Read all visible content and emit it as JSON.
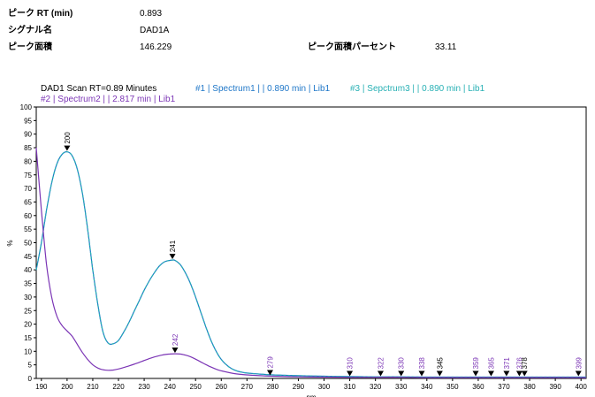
{
  "header": {
    "peak_rt_label": "ピーク RT (min)",
    "peak_rt_value": "0.893",
    "signal_label": "シグナル名",
    "signal_value": "DAD1A",
    "area_label": "ピーク面積",
    "area_value": "146.229",
    "area_pct_label": "ピーク面積パーセント",
    "area_pct_value": "33.11"
  },
  "chart_data": {
    "type": "line",
    "title": "DAD1 Scan RT=0.89 Minutes",
    "xlabel": "nm",
    "ylabel": "%",
    "xlim": [
      188,
      402
    ],
    "ylim": [
      0,
      100
    ],
    "xticks": [
      190,
      200,
      210,
      220,
      230,
      240,
      250,
      260,
      270,
      280,
      290,
      300,
      310,
      320,
      330,
      340,
      350,
      360,
      370,
      380,
      390,
      400
    ],
    "yticks": [
      0,
      5,
      10,
      15,
      20,
      25,
      30,
      35,
      40,
      45,
      50,
      55,
      60,
      65,
      70,
      75,
      80,
      85,
      90,
      95,
      100
    ],
    "grid": false,
    "legend_position": "top",
    "series": [
      {
        "name": "#1 | Spectrum1 |  | 0.890 min | Lib1",
        "color": "#1f77c8",
        "x": [
          188,
          190,
          192,
          194,
          196,
          198,
          200,
          202,
          204,
          206,
          208,
          210,
          212,
          214,
          216,
          218,
          220,
          222,
          224,
          226,
          228,
          230,
          232,
          234,
          236,
          238,
          240,
          241,
          242,
          244,
          246,
          248,
          250,
          252,
          254,
          256,
          258,
          260,
          262,
          264,
          266,
          268,
          270,
          275,
          280,
          290,
          300,
          310,
          320,
          330,
          340,
          350,
          360,
          370,
          380,
          390,
          400,
          402
        ],
        "y": [
          40,
          50,
          62,
          72,
          79,
          82.5,
          83.5,
          82,
          77,
          68,
          55,
          40,
          27,
          17,
          13,
          12.8,
          14,
          17,
          20.5,
          24.5,
          28.5,
          32.5,
          36,
          39,
          41.5,
          43,
          43.5,
          43.6,
          43.5,
          42,
          39,
          35,
          30,
          24.5,
          19,
          14,
          10,
          7,
          5,
          3.6,
          2.8,
          2.3,
          2,
          1.6,
          1.3,
          1,
          0.8,
          0.7,
          0.6,
          0.6,
          0.5,
          0.5,
          0.5,
          0.5,
          0.5,
          0.5,
          0.5,
          0.5
        ]
      },
      {
        "name": "#3 | Sepctrum3 |  | 0.890 min | Lib1",
        "color": "#27b0b4",
        "x": [
          188,
          190,
          192,
          194,
          196,
          198,
          200,
          202,
          204,
          206,
          208,
          210,
          212,
          214,
          216,
          218,
          220,
          222,
          224,
          226,
          228,
          230,
          232,
          234,
          236,
          238,
          240,
          241,
          242,
          244,
          246,
          248,
          250,
          252,
          254,
          256,
          258,
          260,
          262,
          264,
          266,
          268,
          270,
          275,
          280,
          290,
          300,
          310,
          320,
          330,
          340,
          350,
          360,
          370,
          380,
          390,
          400,
          402
        ],
        "y": [
          40,
          50,
          62,
          72,
          79,
          82.5,
          83.5,
          82,
          77,
          68,
          55,
          40,
          27,
          17,
          13,
          12.8,
          14,
          17,
          20.5,
          24.5,
          28.5,
          32.5,
          36,
          39,
          41.5,
          43,
          43.5,
          43.6,
          43.5,
          42,
          39,
          35,
          30,
          24.5,
          19,
          14,
          10,
          7,
          5,
          3.6,
          2.8,
          2.3,
          2,
          1.6,
          1.3,
          1,
          0.8,
          0.7,
          0.6,
          0.6,
          0.5,
          0.5,
          0.5,
          0.5,
          0.5,
          0.5,
          0.5,
          0.5
        ]
      },
      {
        "name": "#2 | Spectrum2 |  | 2.817 min | Lib1",
        "color": "#7b35b5",
        "x": [
          188,
          190,
          192,
          194,
          196,
          198,
          200,
          202,
          204,
          206,
          208,
          210,
          212,
          214,
          216,
          218,
          220,
          222,
          224,
          226,
          228,
          230,
          232,
          234,
          236,
          238,
          240,
          242,
          244,
          246,
          248,
          250,
          252,
          254,
          256,
          258,
          260,
          265,
          270,
          275,
          280,
          290,
          300,
          310,
          320,
          330,
          340,
          350,
          360,
          370,
          380,
          390,
          400,
          402
        ],
        "y": [
          85,
          62,
          42,
          30,
          23,
          19.5,
          17.5,
          15.5,
          12.5,
          9.5,
          7,
          5,
          3.8,
          3.2,
          3,
          3.1,
          3.5,
          4,
          4.6,
          5.2,
          5.9,
          6.6,
          7.3,
          7.9,
          8.4,
          8.8,
          9,
          9.1,
          9,
          8.6,
          8,
          7.1,
          6.1,
          5.1,
          4.2,
          3.4,
          2.8,
          1.8,
          1.3,
          1,
          0.8,
          0.6,
          0.5,
          0.4,
          0.4,
          0.4,
          0.3,
          0.3,
          0.3,
          0.3,
          0.3,
          0.3,
          0.3,
          0.3
        ]
      }
    ],
    "peak_markers": [
      {
        "label": "200",
        "x": 200,
        "y": 83.5,
        "color": "#000000"
      },
      {
        "label": "241",
        "x": 241,
        "y": 43.6,
        "color": "#000000"
      },
      {
        "label": "242",
        "x": 242,
        "y": 9.1,
        "color": "#7b35b5"
      },
      {
        "label": "279",
        "x": 279,
        "y": 0.8,
        "color": "#7b35b5"
      },
      {
        "label": "310",
        "x": 310,
        "y": 0.5,
        "color": "#7b35b5"
      },
      {
        "label": "322",
        "x": 322,
        "y": 0.5,
        "color": "#7b35b5"
      },
      {
        "label": "330",
        "x": 330,
        "y": 0.5,
        "color": "#7b35b5"
      },
      {
        "label": "338",
        "x": 338,
        "y": 0.5,
        "color": "#7b35b5"
      },
      {
        "label": "345",
        "x": 345,
        "y": 0.5,
        "color": "#000000"
      },
      {
        "label": "359",
        "x": 359,
        "y": 0.5,
        "color": "#7b35b5"
      },
      {
        "label": "365",
        "x": 365,
        "y": 0.5,
        "color": "#7b35b5"
      },
      {
        "label": "371",
        "x": 371,
        "y": 0.5,
        "color": "#7b35b5"
      },
      {
        "label": "376",
        "x": 376,
        "y": 0.5,
        "color": "#7b35b5"
      },
      {
        "label": "378",
        "x": 378,
        "y": 0.5,
        "color": "#000000"
      },
      {
        "label": "399",
        "x": 399,
        "y": 0.5,
        "color": "#7b35b5"
      }
    ]
  }
}
